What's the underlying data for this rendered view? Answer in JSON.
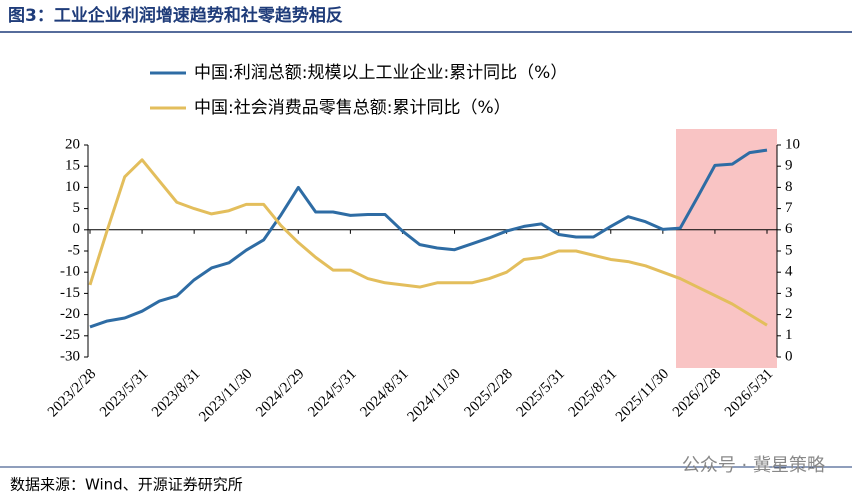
{
  "chart_data": {
    "type": "line",
    "title": "图3：工业企业利润增速趋势和社零趋势相反",
    "source": "数据来源：Wind、开源证券研究所",
    "watermark": "公众号 · 冀星策略",
    "categories": [
      "2023/2/28",
      null,
      null,
      "2023/5/31",
      null,
      null,
      "2023/8/31",
      null,
      null,
      "2023/11/30",
      null,
      null,
      "2024/2/29",
      null,
      null,
      "2024/5/31",
      null,
      null,
      "2024/8/31",
      null,
      null,
      "2024/11/30",
      null,
      null,
      "2025/2/28",
      null,
      null,
      "2025/5/31",
      null,
      null,
      "2025/8/31",
      null,
      null,
      "2025/11/30",
      null,
      null,
      "2026/2/28",
      null,
      null,
      "2026/5/31"
    ],
    "series": [
      {
        "name": "中国:利润总额:规模以上工业企业:累计同比（%）",
        "color": "#2e6ca4",
        "axis": "y",
        "values": [
          -22.9,
          -21.5,
          -20.8,
          -19.2,
          -16.8,
          -15.6,
          -11.8,
          -9.0,
          -7.8,
          -4.8,
          -2.4,
          3.5,
          10.0,
          4.2,
          4.2,
          3.4,
          3.6,
          3.6,
          -0.3,
          -3.5,
          -4.3,
          -4.7,
          -3.3,
          -1.9,
          -0.3,
          0.8,
          1.4,
          -1.1,
          -1.7,
          -1.7,
          0.8,
          3.1,
          1.9,
          0.1,
          0.4,
          7.7,
          15.2,
          15.5,
          18.2,
          18.8
        ]
      },
      {
        "name": "中国:社会消费品零售总额:累计同比（%）",
        "color": "#e3be5c",
        "axis": "y2",
        "values": [
          3.4,
          6.0,
          8.5,
          9.3,
          8.3,
          7.3,
          7.0,
          6.75,
          6.9,
          7.2,
          7.2,
          6.2,
          5.4,
          4.7,
          4.1,
          4.1,
          3.7,
          3.5,
          3.4,
          3.3,
          3.5,
          3.5,
          3.5,
          3.7,
          4.0,
          4.6,
          4.7,
          5.0,
          5.0,
          4.8,
          4.6,
          4.5,
          4.3,
          4.0,
          3.7,
          3.3,
          2.9,
          2.5,
          2.0,
          1.5
        ]
      }
    ],
    "ylim": [
      -30,
      20
    ],
    "yticks": [
      -30,
      -25,
      -20,
      -15,
      -10,
      -5,
      0,
      5,
      10,
      15,
      20
    ],
    "y2lim": [
      0,
      10
    ],
    "y2ticks": [
      0,
      1,
      2,
      3,
      4,
      5,
      6,
      7,
      8,
      9,
      10
    ]
  }
}
